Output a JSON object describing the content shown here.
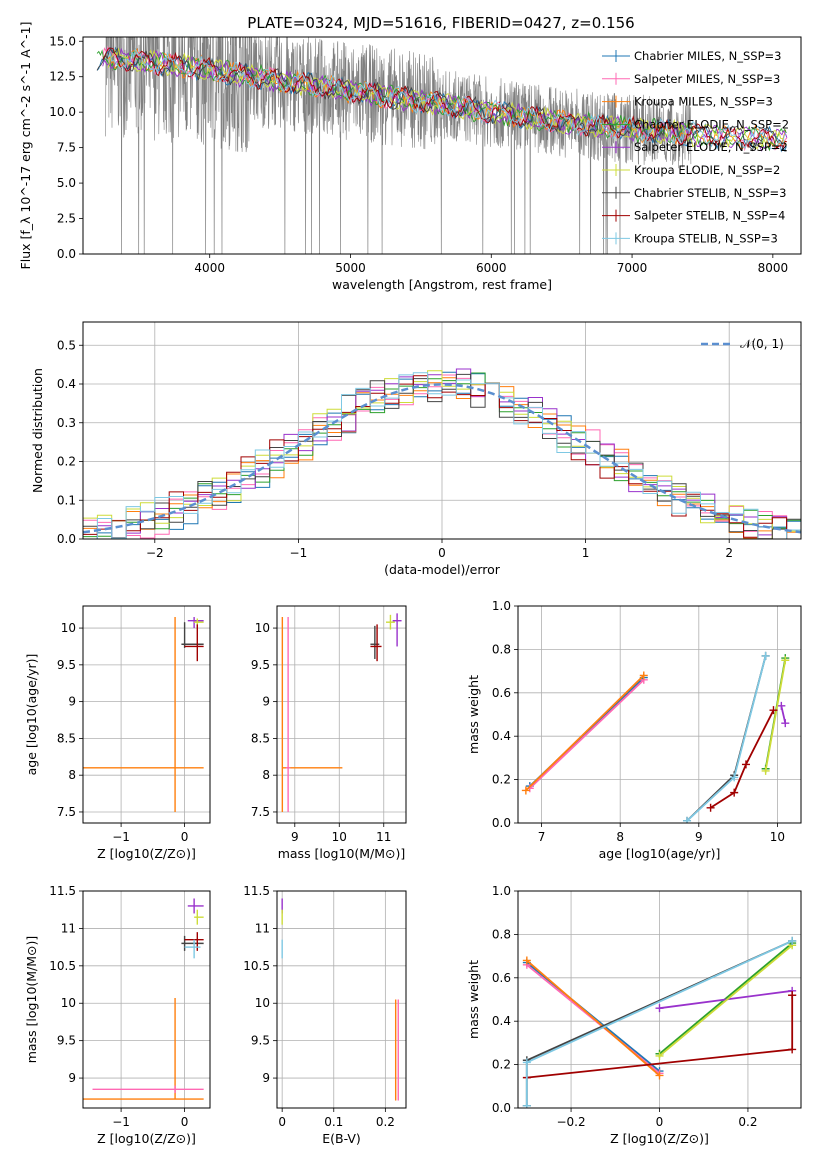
{
  "title": "PLATE=0324, MJD=51616, FIBERID=0427, z=0.156",
  "colors": {
    "Chabrier MILES": "#1f77b4",
    "Salpeter MILES": "#ff69b4",
    "Kroupa MILES": "#ff7f0e",
    "Chabrier ELODIE": "#2ca02c",
    "Salpeter ELODIE": "#9932cc",
    "Kroupa ELODIE": "#cddc39",
    "Chabrier STELIB": "#444444",
    "Salpeter STELIB": "#a00000",
    "Kroupa STELIB": "#7ec8e3",
    "data": "#808080",
    "normal": "#5b8fd0"
  },
  "chart_data": [
    {
      "id": "spectrum",
      "type": "line",
      "title": "PLATE=0324, MJD=51616, FIBERID=0427, z=0.156",
      "xlabel": "wavelength [Angstrom, rest frame]",
      "ylabel": "Flux [f_λ 10^-17 erg cm^-2 s^-1 A^-1]",
      "xlim": [
        3100,
        8200
      ],
      "ylim": [
        0,
        15.3
      ],
      "xticks": [
        4000,
        5000,
        6000,
        7000,
        8000
      ],
      "yticks": [
        0.0,
        2.5,
        5.0,
        7.5,
        10.0,
        12.5,
        15.0
      ],
      "legend_position": "right",
      "legend": [
        "Chabrier MILES, N_SSP=3",
        "Salpeter MILES, N_SSP=3",
        "Kroupa MILES, N_SSP=3",
        "Chabrier ELODIE, N_SSP=2",
        "Salpeter ELODIE, N_SSP=2",
        "Kroupa ELODIE, N_SSP=2",
        "Chabrier STELIB, N_SSP=3",
        "Salpeter STELIB, N_SSP=4",
        "Kroupa STELIB, N_SSP=3"
      ],
      "model_continuum": {
        "x": [
          3250,
          3600,
          4000,
          4500,
          5000,
          5500,
          6000,
          6500,
          7000,
          7500,
          8000,
          8200
        ],
        "y": [
          13.8,
          13.5,
          13.0,
          12.2,
          11.5,
          10.8,
          10.0,
          9.3,
          8.8,
          8.4,
          8.1,
          8.0
        ]
      }
    },
    {
      "id": "residuals",
      "type": "line",
      "xlabel": "(data-model)/error",
      "ylabel": "Normed distribution",
      "xlim": [
        -2.5,
        2.5
      ],
      "ylim": [
        0,
        0.56
      ],
      "xticks": [
        -2,
        -1,
        0,
        1,
        2
      ],
      "yticks": [
        0.0,
        0.1,
        0.2,
        0.3,
        0.4,
        0.5
      ],
      "legend": [
        "𝒩(0, 1)"
      ],
      "legend_position": "top-right",
      "grid": true
    },
    {
      "id": "age_vs_Z",
      "type": "scatter",
      "xlabel": "Z [log10(Z/Z⊙)]",
      "ylabel": "age  [log10(age/yr)]",
      "xlim": [
        -1.6,
        0.4
      ],
      "ylim": [
        7.35,
        10.3
      ],
      "xticks": [
        -1,
        0
      ],
      "yticks": [
        7.5,
        8.0,
        8.5,
        9.0,
        9.5,
        10.0
      ],
      "points": [
        {
          "model": "Kroupa MILES",
          "x": -0.15,
          "y": 8.1,
          "xerr": [
            1.45,
            0.45
          ],
          "yerr": [
            0.6,
            2.05
          ]
        },
        {
          "model": "Salpeter ELODIE",
          "x": 0.15,
          "y": 10.1,
          "xerr": [
            0.1,
            0.15
          ],
          "yerr": [
            0.1,
            0.05
          ]
        },
        {
          "model": "Kroupa ELODIE",
          "x": 0.2,
          "y": 10.08,
          "xerr": [
            0.05,
            0.1
          ],
          "yerr": [
            0.05,
            0.05
          ]
        },
        {
          "model": "Chabrier STELIB",
          "x": 0.0,
          "y": 9.78,
          "xerr": [
            0.05,
            0.3
          ],
          "yerr": [
            0.05,
            0.3
          ]
        },
        {
          "model": "Salpeter STELIB",
          "x": 0.2,
          "y": 9.75,
          "xerr": [
            0.2,
            0.1
          ],
          "yerr": [
            0.2,
            0.3
          ]
        }
      ]
    },
    {
      "id": "age_vs_mass",
      "type": "scatter",
      "xlabel": "mass [log10(M/M⊙)]",
      "ylabel": "",
      "xlim": [
        8.6,
        11.5
      ],
      "ylim": [
        7.35,
        10.3
      ],
      "xticks": [
        9,
        10,
        11
      ],
      "yticks": [
        7.5,
        8.0,
        8.5,
        9.0,
        9.5,
        10.0
      ],
      "points": [
        {
          "model": "Kroupa MILES",
          "x": 8.72,
          "y": 8.1,
          "xerr": [
            0.0,
            1.35
          ],
          "yerr": [
            0.6,
            2.05
          ]
        },
        {
          "model": "Salpeter MILES",
          "x": 8.85,
          "y": 8.1,
          "xerr": [
            0.05,
            0.05
          ],
          "yerr": [
            0.6,
            2.05
          ]
        },
        {
          "model": "Salpeter ELODIE",
          "x": 11.3,
          "y": 10.1,
          "xerr": [
            0.1,
            0.1
          ],
          "yerr": [
            0.35,
            0.1
          ]
        },
        {
          "model": "Kroupa ELODIE",
          "x": 11.15,
          "y": 10.08,
          "xerr": [
            0.1,
            0.1
          ],
          "yerr": [
            0.1,
            0.1
          ]
        },
        {
          "model": "Chabrier STELIB",
          "x": 10.8,
          "y": 9.78,
          "xerr": [
            0.1,
            0.1
          ],
          "yerr": [
            0.2,
            0.25
          ]
        },
        {
          "model": "Salpeter STELIB",
          "x": 10.85,
          "y": 9.75,
          "xerr": [
            0.15,
            0.1
          ],
          "yerr": [
            0.2,
            0.3
          ]
        }
      ]
    },
    {
      "id": "mw_vs_age",
      "type": "line",
      "xlabel": "age  [log10(age/yr)]",
      "ylabel": "mass weight",
      "xlim": [
        6.7,
        10.3
      ],
      "ylim": [
        0,
        1
      ],
      "xticks": [
        7,
        8,
        9,
        10
      ],
      "yticks": [
        0.0,
        0.2,
        0.4,
        0.6,
        0.8,
        1.0
      ],
      "series": [
        {
          "model": "Chabrier MILES",
          "x": [
            6.85,
            8.3
          ],
          "y": [
            0.17,
            0.67
          ]
        },
        {
          "model": "Salpeter MILES",
          "x": [
            6.85,
            8.3
          ],
          "y": [
            0.16,
            0.66
          ]
        },
        {
          "model": "Kroupa MILES",
          "x": [
            6.8,
            8.3
          ],
          "y": [
            0.15,
            0.68
          ]
        },
        {
          "model": "Chabrier ELODIE",
          "x": [
            9.85,
            10.1
          ],
          "y": [
            0.25,
            0.76
          ]
        },
        {
          "model": "Salpeter ELODIE",
          "x": [
            10.05,
            10.1
          ],
          "y": [
            0.54,
            0.46
          ]
        },
        {
          "model": "Kroupa ELODIE",
          "x": [
            9.85,
            10.1
          ],
          "y": [
            0.24,
            0.75
          ]
        },
        {
          "model": "Chabrier STELIB",
          "x": [
            8.85,
            9.45,
            9.85
          ],
          "y": [
            0.01,
            0.22,
            0.77
          ]
        },
        {
          "model": "Salpeter STELIB",
          "x": [
            9.15,
            9.45,
            9.6,
            9.95
          ],
          "y": [
            0.07,
            0.14,
            0.27,
            0.52
          ]
        },
        {
          "model": "Kroupa STELIB",
          "x": [
            8.85,
            9.45,
            9.85
          ],
          "y": [
            0.01,
            0.21,
            0.77
          ]
        }
      ]
    },
    {
      "id": "mass_vs_Z",
      "type": "scatter",
      "xlabel": "Z [log10(Z/Z⊙)]",
      "ylabel": "mass [log10(M/M⊙)]",
      "xlim": [
        -1.6,
        0.4
      ],
      "ylim": [
        8.6,
        11.5
      ],
      "xticks": [
        -1,
        0
      ],
      "yticks": [
        9.0,
        9.5,
        10.0,
        10.5,
        11.0,
        11.5
      ],
      "points": [
        {
          "model": "Kroupa MILES",
          "x": -0.15,
          "y": 8.72,
          "xerr": [
            1.45,
            0.45
          ],
          "yerr": [
            0.0,
            1.35
          ]
        },
        {
          "model": "Salpeter MILES",
          "x": -0.15,
          "y": 8.85,
          "xerr": [
            1.3,
            0.45
          ],
          "yerr": [
            0.05,
            0.05
          ]
        },
        {
          "model": "Salpeter ELODIE",
          "x": 0.15,
          "y": 11.3,
          "xerr": [
            0.1,
            0.15
          ],
          "yerr": [
            0.1,
            0.1
          ]
        },
        {
          "model": "Kroupa ELODIE",
          "x": 0.2,
          "y": 11.15,
          "xerr": [
            0.05,
            0.1
          ],
          "yerr": [
            0.1,
            0.1
          ]
        },
        {
          "model": "Chabrier STELIB",
          "x": 0.0,
          "y": 10.8,
          "xerr": [
            0.05,
            0.3
          ],
          "yerr": [
            0.1,
            0.1
          ]
        },
        {
          "model": "Salpeter STELIB",
          "x": 0.2,
          "y": 10.85,
          "xerr": [
            0.2,
            0.1
          ],
          "yerr": [
            0.15,
            0.1
          ]
        },
        {
          "model": "Kroupa STELIB",
          "x": 0.15,
          "y": 10.75,
          "xerr": [
            0.15,
            0.1
          ],
          "yerr": [
            0.15,
            0.1
          ]
        }
      ]
    },
    {
      "id": "mass_vs_ebv",
      "type": "scatter",
      "xlabel": "E(B-V)",
      "ylabel": "",
      "xlim": [
        -0.01,
        0.24
      ],
      "ylim": [
        8.6,
        11.5
      ],
      "xticks": [
        0.0,
        0.1,
        0.2
      ],
      "yticks": [
        9.0,
        9.5,
        10.0,
        10.5,
        11.0,
        11.5
      ],
      "points": [
        {
          "model": "Salpeter ELODIE",
          "x": 0.0,
          "y": 11.3,
          "xerr": [
            0.0,
            0.0
          ],
          "yerr": [
            0.1,
            0.1
          ]
        },
        {
          "model": "Kroupa ELODIE",
          "x": 0.0,
          "y": 11.15,
          "xerr": [
            0.0,
            0.0
          ],
          "yerr": [
            0.1,
            0.1
          ]
        },
        {
          "model": "Kroupa STELIB",
          "x": 0.0,
          "y": 10.75,
          "xerr": [
            0.0,
            0.0
          ],
          "yerr": [
            0.15,
            0.1
          ]
        },
        {
          "model": "Kroupa MILES",
          "x": 0.22,
          "y": 9.4,
          "xerr": [
            0.0,
            0.0
          ],
          "yerr": [
            0.7,
            0.65
          ]
        },
        {
          "model": "Salpeter MILES",
          "x": 0.225,
          "y": 9.4,
          "xerr": [
            0.0,
            0.0
          ],
          "yerr": [
            0.7,
            0.65
          ]
        }
      ]
    },
    {
      "id": "mw_vs_Z",
      "type": "line",
      "xlabel": "Z [log10(Z/Z⊙)]",
      "ylabel": "mass weight",
      "xlim": [
        -0.32,
        0.32
      ],
      "ylim": [
        0,
        1
      ],
      "xticks": [
        -0.2,
        0.0,
        0.2
      ],
      "yticks": [
        0.0,
        0.2,
        0.4,
        0.6,
        0.8,
        1.0
      ],
      "series": [
        {
          "model": "Chabrier MILES",
          "x": [
            -0.3,
            0.0
          ],
          "y": [
            0.67,
            0.17
          ]
        },
        {
          "model": "Salpeter MILES",
          "x": [
            -0.3,
            0.0
          ],
          "y": [
            0.66,
            0.16
          ]
        },
        {
          "model": "Kroupa MILES",
          "x": [
            -0.3,
            0.0
          ],
          "y": [
            0.68,
            0.15
          ]
        },
        {
          "model": "Chabrier ELODIE",
          "x": [
            0.0,
            0.3
          ],
          "y": [
            0.25,
            0.76
          ]
        },
        {
          "model": "Salpeter ELODIE",
          "x": [
            0.0,
            0.3
          ],
          "y": [
            0.46,
            0.54
          ]
        },
        {
          "model": "Kroupa ELODIE",
          "x": [
            0.0,
            0.3
          ],
          "y": [
            0.24,
            0.75
          ]
        },
        {
          "model": "Chabrier STELIB",
          "x": [
            -0.3,
            -0.3,
            0.3
          ],
          "y": [
            0.01,
            0.22,
            0.77
          ]
        },
        {
          "model": "Salpeter STELIB",
          "x": [
            -0.3,
            0.3,
            0.3,
            0.3
          ],
          "y": [
            0.14,
            0.27,
            0.52,
            0.52
          ]
        },
        {
          "model": "Kroupa STELIB",
          "x": [
            -0.3,
            -0.3,
            0.3
          ],
          "y": [
            0.01,
            0.21,
            0.77
          ]
        }
      ]
    }
  ]
}
